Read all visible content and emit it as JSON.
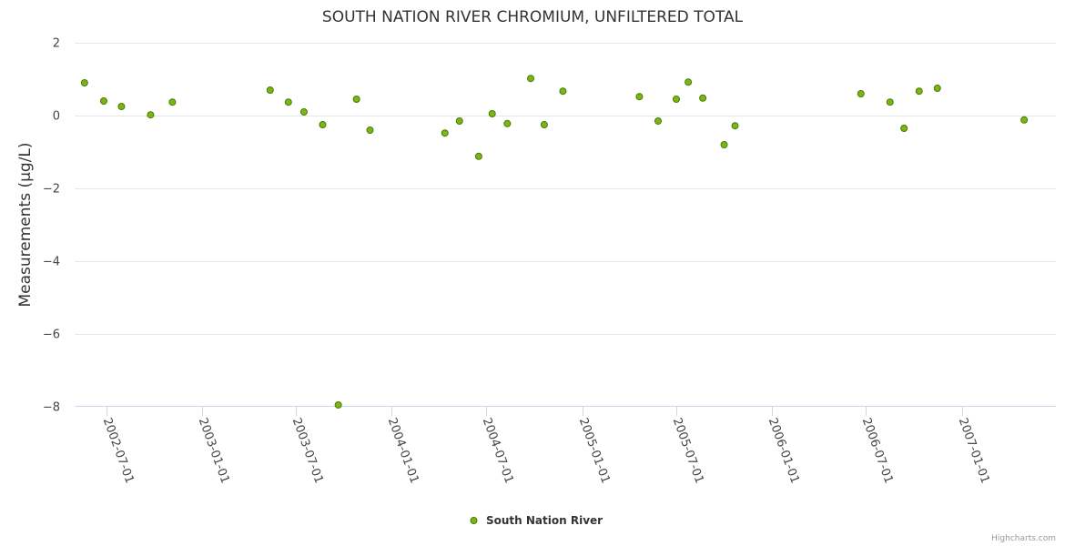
{
  "chart_data": {
    "type": "scatter",
    "title": "SOUTH NATION RIVER CHROMIUM, UNFILTERED TOTAL",
    "ylabel": "Measurements (µg/L)",
    "xlabel": "",
    "ylim": [
      -8,
      2
    ],
    "xlim": [
      "2002-05-01",
      "2007-07-01"
    ],
    "y_ticks": [
      2,
      0,
      -2,
      -4,
      -6,
      -8
    ],
    "y_tick_labels": [
      "2",
      "0",
      "−2",
      "−4",
      "−6",
      "−8"
    ],
    "x_ticks": [
      "2002-07-01",
      "2003-01-01",
      "2003-07-01",
      "2004-01-01",
      "2004-07-01",
      "2005-01-01",
      "2005-07-01",
      "2006-01-01",
      "2006-07-01",
      "2007-01-01"
    ],
    "x_tick_labels": [
      "2002-07-01",
      "2003-01-01",
      "2003-07-01",
      "2004-01-01",
      "2004-07-01",
      "2005-01-01",
      "2005-07-01",
      "2006-01-01",
      "2006-07-01",
      "2007-01-01"
    ],
    "grid": true,
    "legend_position": "bottom-center",
    "series": [
      {
        "name": "South Nation River",
        "color": "#7cb518",
        "marker_edge": "#4a7a00",
        "points": [
          {
            "x": "2002-05-20",
            "y": 0.9
          },
          {
            "x": "2002-06-26",
            "y": 0.4
          },
          {
            "x": "2002-07-30",
            "y": 0.25
          },
          {
            "x": "2002-09-24",
            "y": 0.02
          },
          {
            "x": "2002-11-05",
            "y": 0.37
          },
          {
            "x": "2003-05-12",
            "y": 0.7
          },
          {
            "x": "2003-06-16",
            "y": 0.37
          },
          {
            "x": "2003-07-16",
            "y": 0.1
          },
          {
            "x": "2003-08-21",
            "y": -0.25
          },
          {
            "x": "2003-09-20",
            "y": -7.95
          },
          {
            "x": "2003-10-25",
            "y": 0.45
          },
          {
            "x": "2003-11-20",
            "y": -0.4
          },
          {
            "x": "2004-04-12",
            "y": -0.48
          },
          {
            "x": "2004-05-10",
            "y": -0.15
          },
          {
            "x": "2004-06-16",
            "y": -1.12
          },
          {
            "x": "2004-07-12",
            "y": 0.05
          },
          {
            "x": "2004-08-10",
            "y": -0.22
          },
          {
            "x": "2004-09-24",
            "y": 1.02
          },
          {
            "x": "2004-10-20",
            "y": -0.25
          },
          {
            "x": "2004-11-25",
            "y": 0.67
          },
          {
            "x": "2005-04-21",
            "y": 0.52
          },
          {
            "x": "2005-05-27",
            "y": -0.15
          },
          {
            "x": "2005-07-01",
            "y": 0.45
          },
          {
            "x": "2005-07-24",
            "y": 0.92
          },
          {
            "x": "2005-08-21",
            "y": 0.48
          },
          {
            "x": "2005-10-01",
            "y": -0.8
          },
          {
            "x": "2005-10-22",
            "y": -0.28
          },
          {
            "x": "2006-06-21",
            "y": 0.6
          },
          {
            "x": "2006-08-16",
            "y": 0.37
          },
          {
            "x": "2006-09-12",
            "y": -0.35
          },
          {
            "x": "2006-10-11",
            "y": 0.67
          },
          {
            "x": "2006-11-15",
            "y": 0.75
          },
          {
            "x": "2007-05-01",
            "y": -0.12
          }
        ]
      }
    ]
  },
  "credits": "Highcharts.com"
}
